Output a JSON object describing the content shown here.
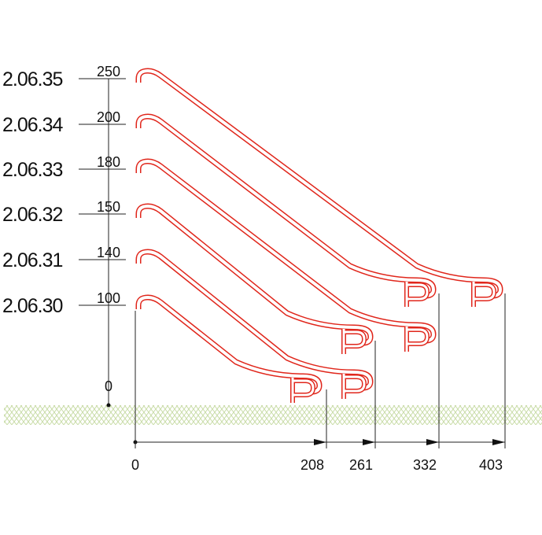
{
  "rows": [
    {
      "code": "2.06.35",
      "height": "250"
    },
    {
      "code": "2.06.34",
      "height": "200"
    },
    {
      "code": "2.06.33",
      "height": "180"
    },
    {
      "code": "2.06.32",
      "height": "150"
    },
    {
      "code": "2.06.31",
      "height": "140"
    },
    {
      "code": "2.06.30",
      "height": "100"
    }
  ],
  "ground_label": "0",
  "widths": [
    "0",
    "208",
    "261",
    "332",
    "403"
  ]
}
